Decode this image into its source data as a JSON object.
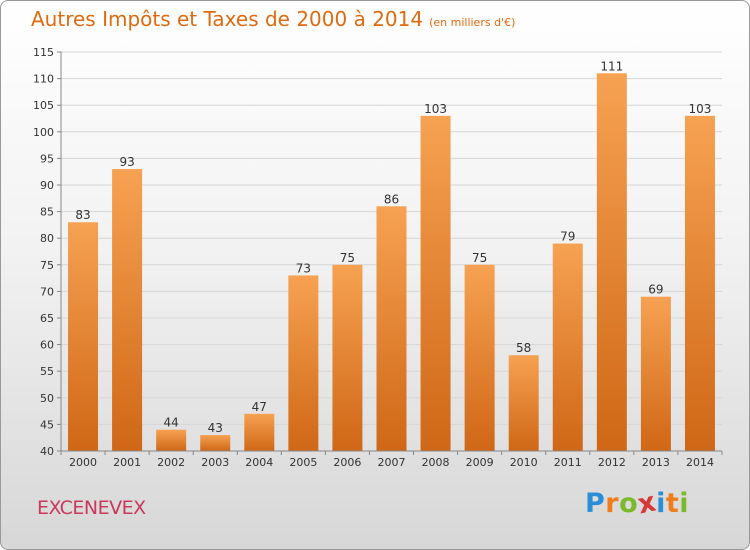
{
  "title": "Autres Impôts et Taxes de 2000 à 2014",
  "unit": "(en milliers d'€)",
  "commune": "EXCENEVEX",
  "logo": {
    "letters": [
      "P",
      "r",
      "o",
      "x",
      "i",
      "t",
      "i"
    ],
    "colors": [
      "#2a8fd6",
      "#f07d1a",
      "#7ab929",
      "#d93636",
      "#2a8fd6",
      "#f07d1a",
      "#7ab929"
    ]
  },
  "colors": {
    "bar_top": "#f6a252",
    "bar_bottom": "#cf6716",
    "title": "#e06a10",
    "commune": "#c83a5a"
  },
  "chart_data": {
    "type": "bar",
    "categories": [
      "2000",
      "2001",
      "2002",
      "2003",
      "2004",
      "2005",
      "2006",
      "2007",
      "2008",
      "2009",
      "2010",
      "2011",
      "2012",
      "2013",
      "2014"
    ],
    "values": [
      83,
      93,
      44,
      43,
      47,
      73,
      75,
      86,
      103,
      75,
      58,
      79,
      111,
      69,
      103
    ],
    "ylim": [
      40,
      115
    ],
    "yticks": [
      40,
      45,
      50,
      55,
      60,
      65,
      70,
      75,
      80,
      85,
      90,
      95,
      100,
      105,
      110,
      115
    ],
    "grid": true,
    "data_labels": true
  }
}
